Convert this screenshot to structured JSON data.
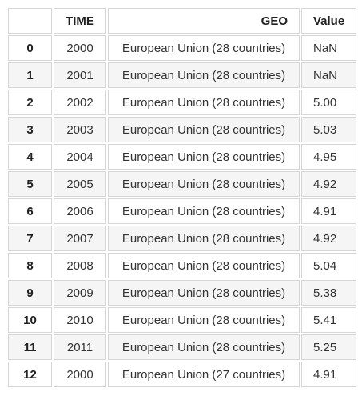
{
  "table": {
    "columns": [
      "",
      "TIME",
      "GEO",
      "Value"
    ],
    "rows": [
      {
        "index": "0",
        "time": "2000",
        "geo": "European Union (28 countries)",
        "value": "NaN"
      },
      {
        "index": "1",
        "time": "2001",
        "geo": "European Union (28 countries)",
        "value": "NaN"
      },
      {
        "index": "2",
        "time": "2002",
        "geo": "European Union (28 countries)",
        "value": "5.00"
      },
      {
        "index": "3",
        "time": "2003",
        "geo": "European Union (28 countries)",
        "value": "5.03"
      },
      {
        "index": "4",
        "time": "2004",
        "geo": "European Union (28 countries)",
        "value": "4.95"
      },
      {
        "index": "5",
        "time": "2005",
        "geo": "European Union (28 countries)",
        "value": "4.92"
      },
      {
        "index": "6",
        "time": "2006",
        "geo": "European Union (28 countries)",
        "value": "4.91"
      },
      {
        "index": "7",
        "time": "2007",
        "geo": "European Union (28 countries)",
        "value": "4.92"
      },
      {
        "index": "8",
        "time": "2008",
        "geo": "European Union (28 countries)",
        "value": "5.04"
      },
      {
        "index": "9",
        "time": "2009",
        "geo": "European Union (28 countries)",
        "value": "5.38"
      },
      {
        "index": "10",
        "time": "2010",
        "geo": "European Union (28 countries)",
        "value": "5.41"
      },
      {
        "index": "11",
        "time": "2011",
        "geo": "European Union (28 countries)",
        "value": "5.25"
      },
      {
        "index": "12",
        "time": "2000",
        "geo": "European Union (27 countries)",
        "value": "4.91"
      }
    ]
  }
}
